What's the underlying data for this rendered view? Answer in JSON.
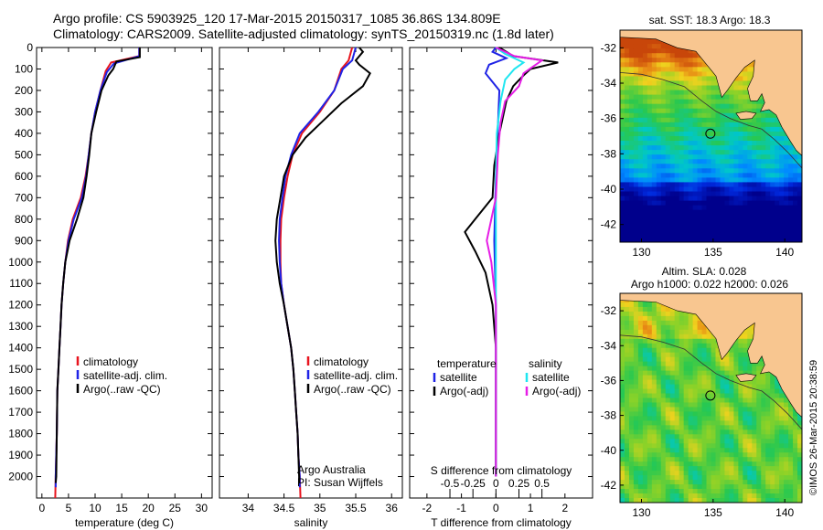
{
  "header": {
    "line1": "Argo profile: CS 5903925_120 17-Mar-2015 20150317_1085 36.86S 134.809E",
    "line2": "Climatology: CARS2009. Satellite-adjusted climatology: synTS_20150319.nc (1.8d later)"
  },
  "credit": {
    "line1": "Argo Australia",
    "line2": "PI: Susan Wijffels"
  },
  "stamp": "©IMOS 26-Mar-2015 20:38:59",
  "colors": {
    "climatology": "#e8141e",
    "satellite": "#1f23e6",
    "argo": "#000000",
    "satellite_salinity": "#1ee6f0",
    "argo_salinity": "#e61ee6",
    "land": "#f8c690"
  },
  "chart_data": [
    {
      "type": "line",
      "name": "temperature_panel",
      "xlabel": "temperature (deg C)",
      "ylabel": "",
      "xlim": [
        -1,
        32
      ],
      "ylim": [
        2100,
        0
      ],
      "xticks": [
        "0",
        "5",
        "10",
        "15",
        "20",
        "25",
        "30"
      ],
      "xtick_values": [
        0,
        5,
        10,
        15,
        20,
        25,
        30
      ],
      "yticks": [
        "0",
        "100",
        "200",
        "300",
        "400",
        "500",
        "600",
        "700",
        "800",
        "900",
        "1000",
        "1100",
        "1200",
        "1300",
        "1400",
        "1500",
        "1600",
        "1700",
        "1800",
        "1900",
        "2000"
      ],
      "ytick_values": [
        0,
        100,
        200,
        300,
        400,
        500,
        600,
        700,
        800,
        900,
        1000,
        1100,
        1200,
        1300,
        1400,
        1500,
        1600,
        1700,
        1800,
        1900,
        2000
      ],
      "legend": [
        "climatology",
        "satellite-adj. clim.",
        "Argo(..raw -QC)"
      ],
      "legend_placement": "lower-center",
      "series": [
        {
          "name": "climatology",
          "points": [
            [
              18.3,
              0
            ],
            [
              18.3,
              40
            ],
            [
              13,
              70
            ],
            [
              12,
              110
            ],
            [
              11,
              200
            ],
            [
              10,
              300
            ],
            [
              9.3,
              400
            ],
            [
              8.8,
              500
            ],
            [
              8.2,
              600
            ],
            [
              7.3,
              700
            ],
            [
              5.8,
              800
            ],
            [
              4.9,
              900
            ],
            [
              4.4,
              1000
            ],
            [
              4.0,
              1100
            ],
            [
              3.7,
              1200
            ],
            [
              3.5,
              1300
            ],
            [
              3.3,
              1400
            ],
            [
              3.1,
              1500
            ],
            [
              2.9,
              1600
            ],
            [
              2.8,
              1800
            ],
            [
              2.6,
              2000
            ],
            [
              2.5,
              2100
            ]
          ]
        },
        {
          "name": "satellite-adj. clim.",
          "points": [
            [
              18.3,
              0
            ],
            [
              18.3,
              40
            ],
            [
              13.5,
              75
            ],
            [
              12.2,
              115
            ],
            [
              11,
              200
            ],
            [
              10,
              300
            ],
            [
              9.3,
              400
            ],
            [
              8.8,
              500
            ],
            [
              8.3,
              600
            ],
            [
              7.5,
              700
            ],
            [
              6,
              800
            ],
            [
              5.0,
              900
            ],
            [
              4.4,
              1000
            ],
            [
              4.0,
              1100
            ],
            [
              3.7,
              1200
            ],
            [
              3.5,
              1300
            ],
            [
              3.3,
              1400
            ],
            [
              3.1,
              1500
            ],
            [
              2.9,
              1600
            ],
            [
              2.8,
              1800
            ],
            [
              2.6,
              2000
            ],
            [
              2.6,
              2050
            ]
          ]
        },
        {
          "name": "Argo(..raw -QC)",
          "points": [
            [
              18.4,
              0
            ],
            [
              18.4,
              45
            ],
            [
              14,
              65
            ],
            [
              13.4,
              100
            ],
            [
              12.5,
              130
            ],
            [
              11.2,
              200
            ],
            [
              10.2,
              300
            ],
            [
              9.3,
              400
            ],
            [
              8.9,
              500
            ],
            [
              8.4,
              600
            ],
            [
              7.8,
              700
            ],
            [
              6.6,
              800
            ],
            [
              5.2,
              900
            ],
            [
              4.4,
              1000
            ],
            [
              4.0,
              1100
            ],
            [
              3.7,
              1200
            ],
            [
              3.5,
              1300
            ],
            [
              3.3,
              1400
            ],
            [
              3.1,
              1500
            ],
            [
              2.9,
              1600
            ],
            [
              2.8,
              1800
            ],
            [
              2.7,
              2000
            ],
            [
              2.6,
              2030
            ]
          ]
        }
      ]
    },
    {
      "type": "line",
      "name": "salinity_panel",
      "xlabel": "salinity",
      "xlim": [
        33.6,
        36.15
      ],
      "ylim": [
        2100,
        0
      ],
      "xticks": [
        "34",
        "34.5",
        "35",
        "35.5",
        "36"
      ],
      "xtick_values": [
        34,
        34.5,
        35,
        35.5,
        36
      ],
      "legend": [
        "climatology",
        "satellite-adj. clim.",
        "Argo(..raw -QC)"
      ],
      "legend_placement": "lower-center",
      "series": [
        {
          "name": "climatology",
          "points": [
            [
              35.45,
              0
            ],
            [
              35.4,
              60
            ],
            [
              35.3,
              100
            ],
            [
              35.2,
              200
            ],
            [
              35.0,
              300
            ],
            [
              34.75,
              400
            ],
            [
              34.62,
              500
            ],
            [
              34.55,
              600
            ],
            [
              34.5,
              700
            ],
            [
              34.46,
              800
            ],
            [
              34.45,
              900
            ],
            [
              34.45,
              1000
            ],
            [
              34.46,
              1100
            ],
            [
              34.5,
              1200
            ],
            [
              34.55,
              1300
            ],
            [
              34.6,
              1400
            ],
            [
              34.63,
              1500
            ],
            [
              34.65,
              1600
            ],
            [
              34.67,
              1700
            ],
            [
              34.69,
              1800
            ],
            [
              34.7,
              1900
            ],
            [
              34.72,
              2000
            ],
            [
              34.73,
              2100
            ]
          ]
        },
        {
          "name": "satellite-adj. clim.",
          "points": [
            [
              35.5,
              0
            ],
            [
              35.45,
              60
            ],
            [
              35.32,
              100
            ],
            [
              35.2,
              200
            ],
            [
              34.98,
              300
            ],
            [
              34.72,
              400
            ],
            [
              34.6,
              500
            ],
            [
              34.52,
              600
            ],
            [
              34.48,
              700
            ],
            [
              34.44,
              800
            ],
            [
              34.43,
              900
            ],
            [
              34.44,
              1000
            ],
            [
              34.46,
              1100
            ],
            [
              34.5,
              1200
            ],
            [
              34.55,
              1300
            ],
            [
              34.6,
              1400
            ],
            [
              34.63,
              1500
            ],
            [
              34.65,
              1600
            ],
            [
              34.67,
              1700
            ],
            [
              34.69,
              1800
            ],
            [
              34.7,
              1900
            ],
            [
              34.72,
              2000
            ],
            [
              34.72,
              2050
            ]
          ]
        },
        {
          "name": "Argo(..raw -QC)",
          "points": [
            [
              35.55,
              0
            ],
            [
              35.6,
              20
            ],
            [
              35.5,
              60
            ],
            [
              35.55,
              80
            ],
            [
              35.7,
              120
            ],
            [
              35.6,
              180
            ],
            [
              35.3,
              260
            ],
            [
              35.05,
              340
            ],
            [
              34.8,
              420
            ],
            [
              34.62,
              500
            ],
            [
              34.5,
              600
            ],
            [
              34.45,
              700
            ],
            [
              34.4,
              800
            ],
            [
              34.38,
              900
            ],
            [
              34.4,
              1000
            ],
            [
              34.44,
              1100
            ],
            [
              34.5,
              1200
            ],
            [
              34.55,
              1300
            ],
            [
              34.6,
              1400
            ],
            [
              34.63,
              1500
            ],
            [
              34.65,
              1600
            ],
            [
              34.67,
              1700
            ],
            [
              34.69,
              1800
            ],
            [
              34.7,
              1900
            ],
            [
              34.71,
              2000
            ],
            [
              34.71,
              2030
            ]
          ]
        }
      ]
    },
    {
      "type": "line",
      "name": "difference_panel",
      "xlabel": "T difference from climatology",
      "x2label": "S difference from climatology",
      "xlim": [
        -2.5,
        2.8
      ],
      "ylim": [
        2100,
        0
      ],
      "xticks": [
        "-2",
        "-1",
        "0",
        "1",
        "2"
      ],
      "xtick_values": [
        -2,
        -1,
        0,
        1,
        2
      ],
      "x2ticks": [
        "-0.5",
        "-0.25",
        "0",
        "0.25",
        "0.5"
      ],
      "x2tick_values": [
        -0.5,
        -0.25,
        0,
        0.25,
        0.5
      ],
      "legend_temperature": {
        "title": "temperature",
        "items": [
          "satellite",
          "Argo(-adj)"
        ]
      },
      "legend_salinity": {
        "title": "salinity",
        "items": [
          "satellite",
          "Argo(-adj)"
        ]
      },
      "legend_placement": "lower-center",
      "series": [
        {
          "name": "satellite",
          "variable": "temperature",
          "points": [
            [
              0,
              0
            ],
            [
              -0.1,
              20
            ],
            [
              0.3,
              50
            ],
            [
              -0.2,
              80
            ],
            [
              -0.3,
              120
            ],
            [
              0.1,
              200
            ],
            [
              0.05,
              400
            ],
            [
              0,
              600
            ],
            [
              -0.05,
              900
            ],
            [
              0,
              1200
            ],
            [
              0,
              1600
            ],
            [
              0,
              2000
            ]
          ]
        },
        {
          "name": "Argo(-adj)",
          "variable": "temperature",
          "points": [
            [
              0.1,
              0
            ],
            [
              0.5,
              40
            ],
            [
              1.8,
              70
            ],
            [
              1.0,
              100
            ],
            [
              0.8,
              130
            ],
            [
              0.5,
              180
            ],
            [
              0.3,
              250
            ],
            [
              0.1,
              400
            ],
            [
              -0.05,
              550
            ],
            [
              -0.1,
              700
            ],
            [
              -0.6,
              800
            ],
            [
              -0.9,
              860
            ],
            [
              -0.6,
              950
            ],
            [
              -0.3,
              1050
            ],
            [
              -0.1,
              1200
            ],
            [
              0,
              1400
            ],
            [
              0,
              1800
            ],
            [
              0,
              2000
            ]
          ]
        },
        {
          "name": "satellite",
          "variable": "salinity",
          "points": [
            [
              0,
              0
            ],
            [
              0.1,
              30
            ],
            [
              0.3,
              70
            ],
            [
              0.2,
              100
            ],
            [
              0.1,
              150
            ],
            [
              0.05,
              250
            ],
            [
              0.01,
              400
            ],
            [
              0,
              600
            ],
            [
              0,
              900
            ],
            [
              0,
              1200
            ],
            [
              0,
              1600
            ],
            [
              0,
              2000
            ]
          ]
        },
        {
          "name": "Argo(-adj)",
          "variable": "salinity",
          "points": [
            [
              0,
              0
            ],
            [
              0.2,
              40
            ],
            [
              0.5,
              60
            ],
            [
              0.4,
              90
            ],
            [
              0.3,
              120
            ],
            [
              0.25,
              180
            ],
            [
              0.1,
              250
            ],
            [
              0.05,
              350
            ],
            [
              0.02,
              500
            ],
            [
              0,
              700
            ],
            [
              -0.05,
              800
            ],
            [
              -0.1,
              900
            ],
            [
              -0.05,
              1000
            ],
            [
              0,
              1200
            ],
            [
              0,
              1600
            ],
            [
              0,
              2000
            ]
          ]
        }
      ]
    },
    {
      "type": "heatmap",
      "name": "sst_map",
      "title": "sat. SST: 18.3 Argo: 18.3",
      "xlim": [
        128.5,
        141.2
      ],
      "ylim": [
        -43,
        -31
      ],
      "xticks": [
        "130",
        "135",
        "140"
      ],
      "xtick_values": [
        130,
        135,
        140
      ],
      "yticks": [
        "-32",
        "-34",
        "-36",
        "-38",
        "-40",
        "-42"
      ],
      "ytick_values": [
        -32,
        -34,
        -36,
        -38,
        -40,
        -42
      ],
      "marker": {
        "lon": 134.809,
        "lat": -36.86
      }
    },
    {
      "type": "heatmap",
      "name": "sla_map",
      "title_line1": "Altim. SLA: 0.028",
      "title_line2": "Argo h1000: 0.022 h2000: 0.026",
      "xlim": [
        128.5,
        141.2
      ],
      "ylim": [
        -43,
        -31
      ],
      "xticks": [
        "130",
        "135",
        "140"
      ],
      "xtick_values": [
        130,
        135,
        140
      ],
      "yticks": [
        "-32",
        "-34",
        "-36",
        "-38",
        "-40",
        "-42"
      ],
      "ytick_values": [
        -32,
        -34,
        -36,
        -38,
        -40,
        -42
      ],
      "marker": {
        "lon": 134.809,
        "lat": -36.86
      }
    }
  ]
}
